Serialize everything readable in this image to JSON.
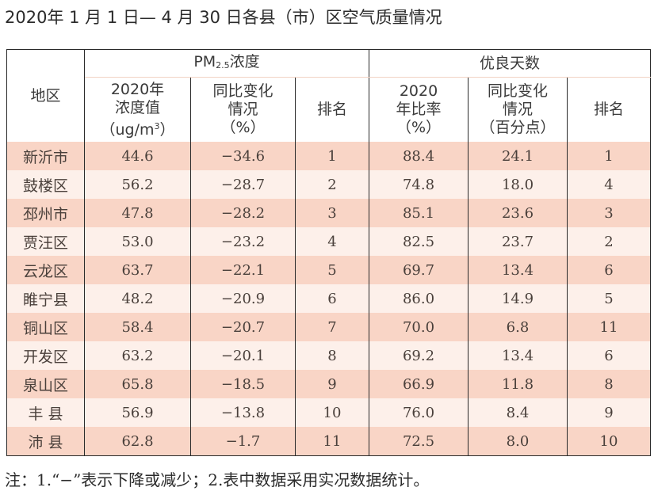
{
  "title": "2020年 1 月 1 日— 4 月 30 日各县（市）区空气质量情况",
  "header": {
    "region": "地区",
    "pm_group_prefix": "PM",
    "pm_group_sub": "2.5",
    "pm_group_suffix": "浓度",
    "good_group": "优良天数",
    "pm_value": [
      "2020年",
      "浓度值",
      "（ug/m",
      "3",
      "）"
    ],
    "pm_change": [
      "同比变化",
      "情况",
      "（%）"
    ],
    "pm_rank": "排名",
    "good_rate": [
      "2020",
      "年比率",
      "（%）"
    ],
    "good_change": [
      "同比变化",
      "情况",
      "（百分点）"
    ],
    "good_rank": "排名"
  },
  "rows": [
    [
      "新沂市",
      "44.6",
      "−34.6",
      "1",
      "88.4",
      "24.1",
      "1"
    ],
    [
      "鼓楼区",
      "56.2",
      "−28.7",
      "2",
      "74.8",
      "18.0",
      "4"
    ],
    [
      "邳州市",
      "47.8",
      "−28.2",
      "3",
      "85.1",
      "23.6",
      "3"
    ],
    [
      "贾汪区",
      "53.0",
      "−23.2",
      "4",
      "82.5",
      "23.7",
      "2"
    ],
    [
      "云龙区",
      "63.7",
      "−22.1",
      "5",
      "69.7",
      "13.4",
      "6"
    ],
    [
      "睢宁县",
      "48.2",
      "−20.9",
      "6",
      "86.0",
      "14.9",
      "5"
    ],
    [
      "铜山区",
      "58.4",
      "−20.7",
      "7",
      "70.0",
      "6.8",
      "11"
    ],
    [
      "开发区",
      "63.2",
      "−20.1",
      "8",
      "69.2",
      "13.4",
      "6"
    ],
    [
      "泉山区",
      "65.8",
      "−18.5",
      "9",
      "66.9",
      "11.8",
      "8"
    ],
    [
      "丰 县",
      "56.9",
      "−13.8",
      "10",
      "76.0",
      "8.4",
      "9"
    ],
    [
      "沛 县",
      "62.8",
      "−1.7",
      "11",
      "72.5",
      "8.0",
      "10"
    ]
  ],
  "note": "注：1.“−”表示下降或减少；2.表中数据采用实况数据统计。",
  "colors": {
    "row_dark": "#f9d5c6",
    "row_light": "#fdf0ea",
    "border": "#2a2a2a"
  }
}
